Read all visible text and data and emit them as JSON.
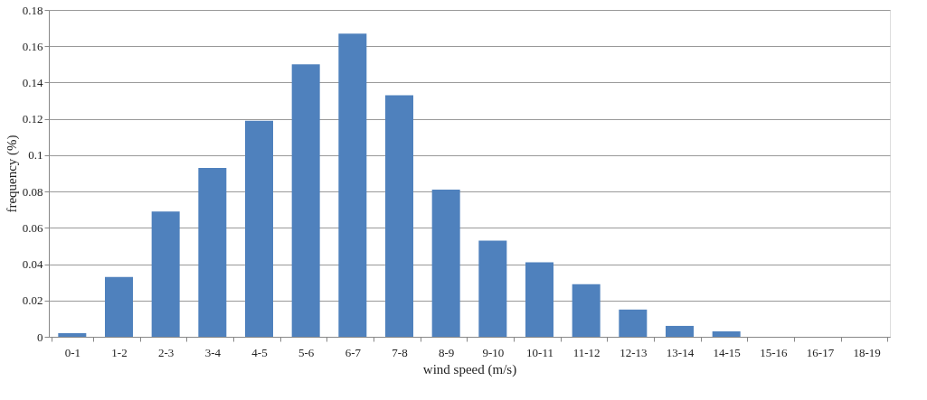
{
  "chart_data": {
    "type": "bar",
    "xlabel": "wind speed (m/s)",
    "ylabel": "frequency (%)",
    "categories": [
      "0-1",
      "1-2",
      "2-3",
      "3-4",
      "4-5",
      "5-6",
      "6-7",
      "7-8",
      "8-9",
      "9-10",
      "10-11",
      "11-12",
      "12-13",
      "13-14",
      "14-15",
      "15-16",
      "16-17",
      "18-19"
    ],
    "values": [
      0.002,
      0.033,
      0.069,
      0.093,
      0.119,
      0.15,
      0.167,
      0.133,
      0.081,
      0.053,
      0.041,
      0.029,
      0.015,
      0.006,
      0.003,
      0,
      0,
      0
    ],
    "color": "#4f81bd",
    "ylim": [
      0,
      0.18
    ],
    "yticks": [
      0,
      0.02,
      0.04,
      0.06,
      0.08,
      {
        "value": 0.1,
        "label": "0.1"
      },
      0.12,
      0.14,
      0.16,
      0.18
    ],
    "grid": "y"
  }
}
